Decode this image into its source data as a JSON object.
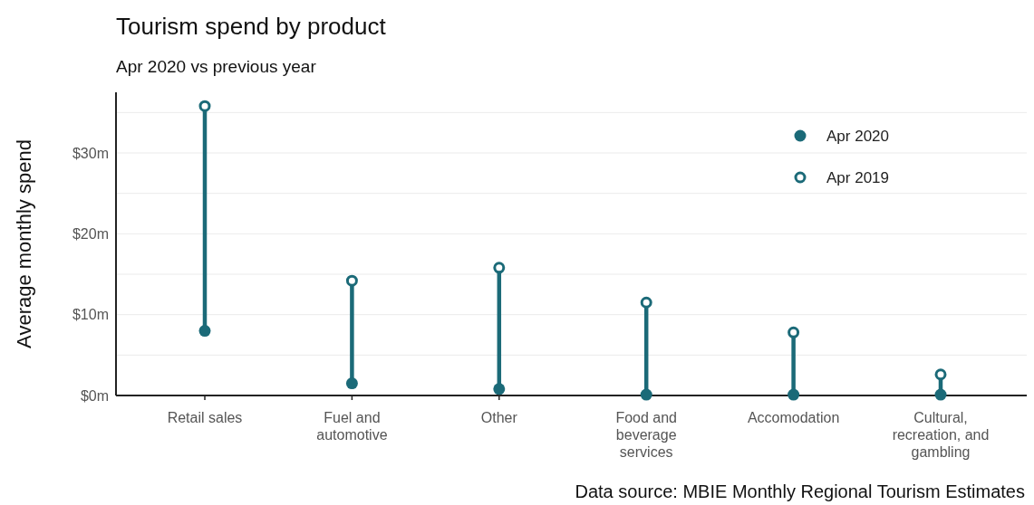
{
  "chart_data": {
    "type": "scatter",
    "title": "Tourism spend by product",
    "subtitle": "Apr 2020 vs previous year",
    "ylabel": "Average monthly spend",
    "categories": [
      "Retail sales",
      "Fuel and automotive",
      "Other",
      "Food and beverage services",
      "Accomodation",
      "Cultural, recreation, and gambling"
    ],
    "series": [
      {
        "name": "Apr 2020",
        "color": "#1b6a78",
        "values": [
          8.0,
          1.5,
          0.8,
          0.1,
          0.1,
          0.1
        ]
      },
      {
        "name": "Apr 2019",
        "color": "#1b6a78",
        "values": [
          35.8,
          14.2,
          15.8,
          11.5,
          7.8,
          2.6
        ]
      }
    ],
    "ylim": [
      0,
      37.5
    ],
    "yticks": [
      {
        "value": 0,
        "label": "$0m"
      },
      {
        "value": 5,
        "label": null
      },
      {
        "value": 10,
        "label": "$10m"
      },
      {
        "value": 15,
        "label": null
      },
      {
        "value": 20,
        "label": "$20m"
      },
      {
        "value": 25,
        "label": null
      },
      {
        "value": 30,
        "label": "$30m"
      },
      {
        "value": 35,
        "label": null
      }
    ],
    "grid": "y",
    "legend": "top right",
    "marker": "circle",
    "annotations": [
      "Data source: MBIE Monthly Regional Tourism Estimates"
    ]
  }
}
